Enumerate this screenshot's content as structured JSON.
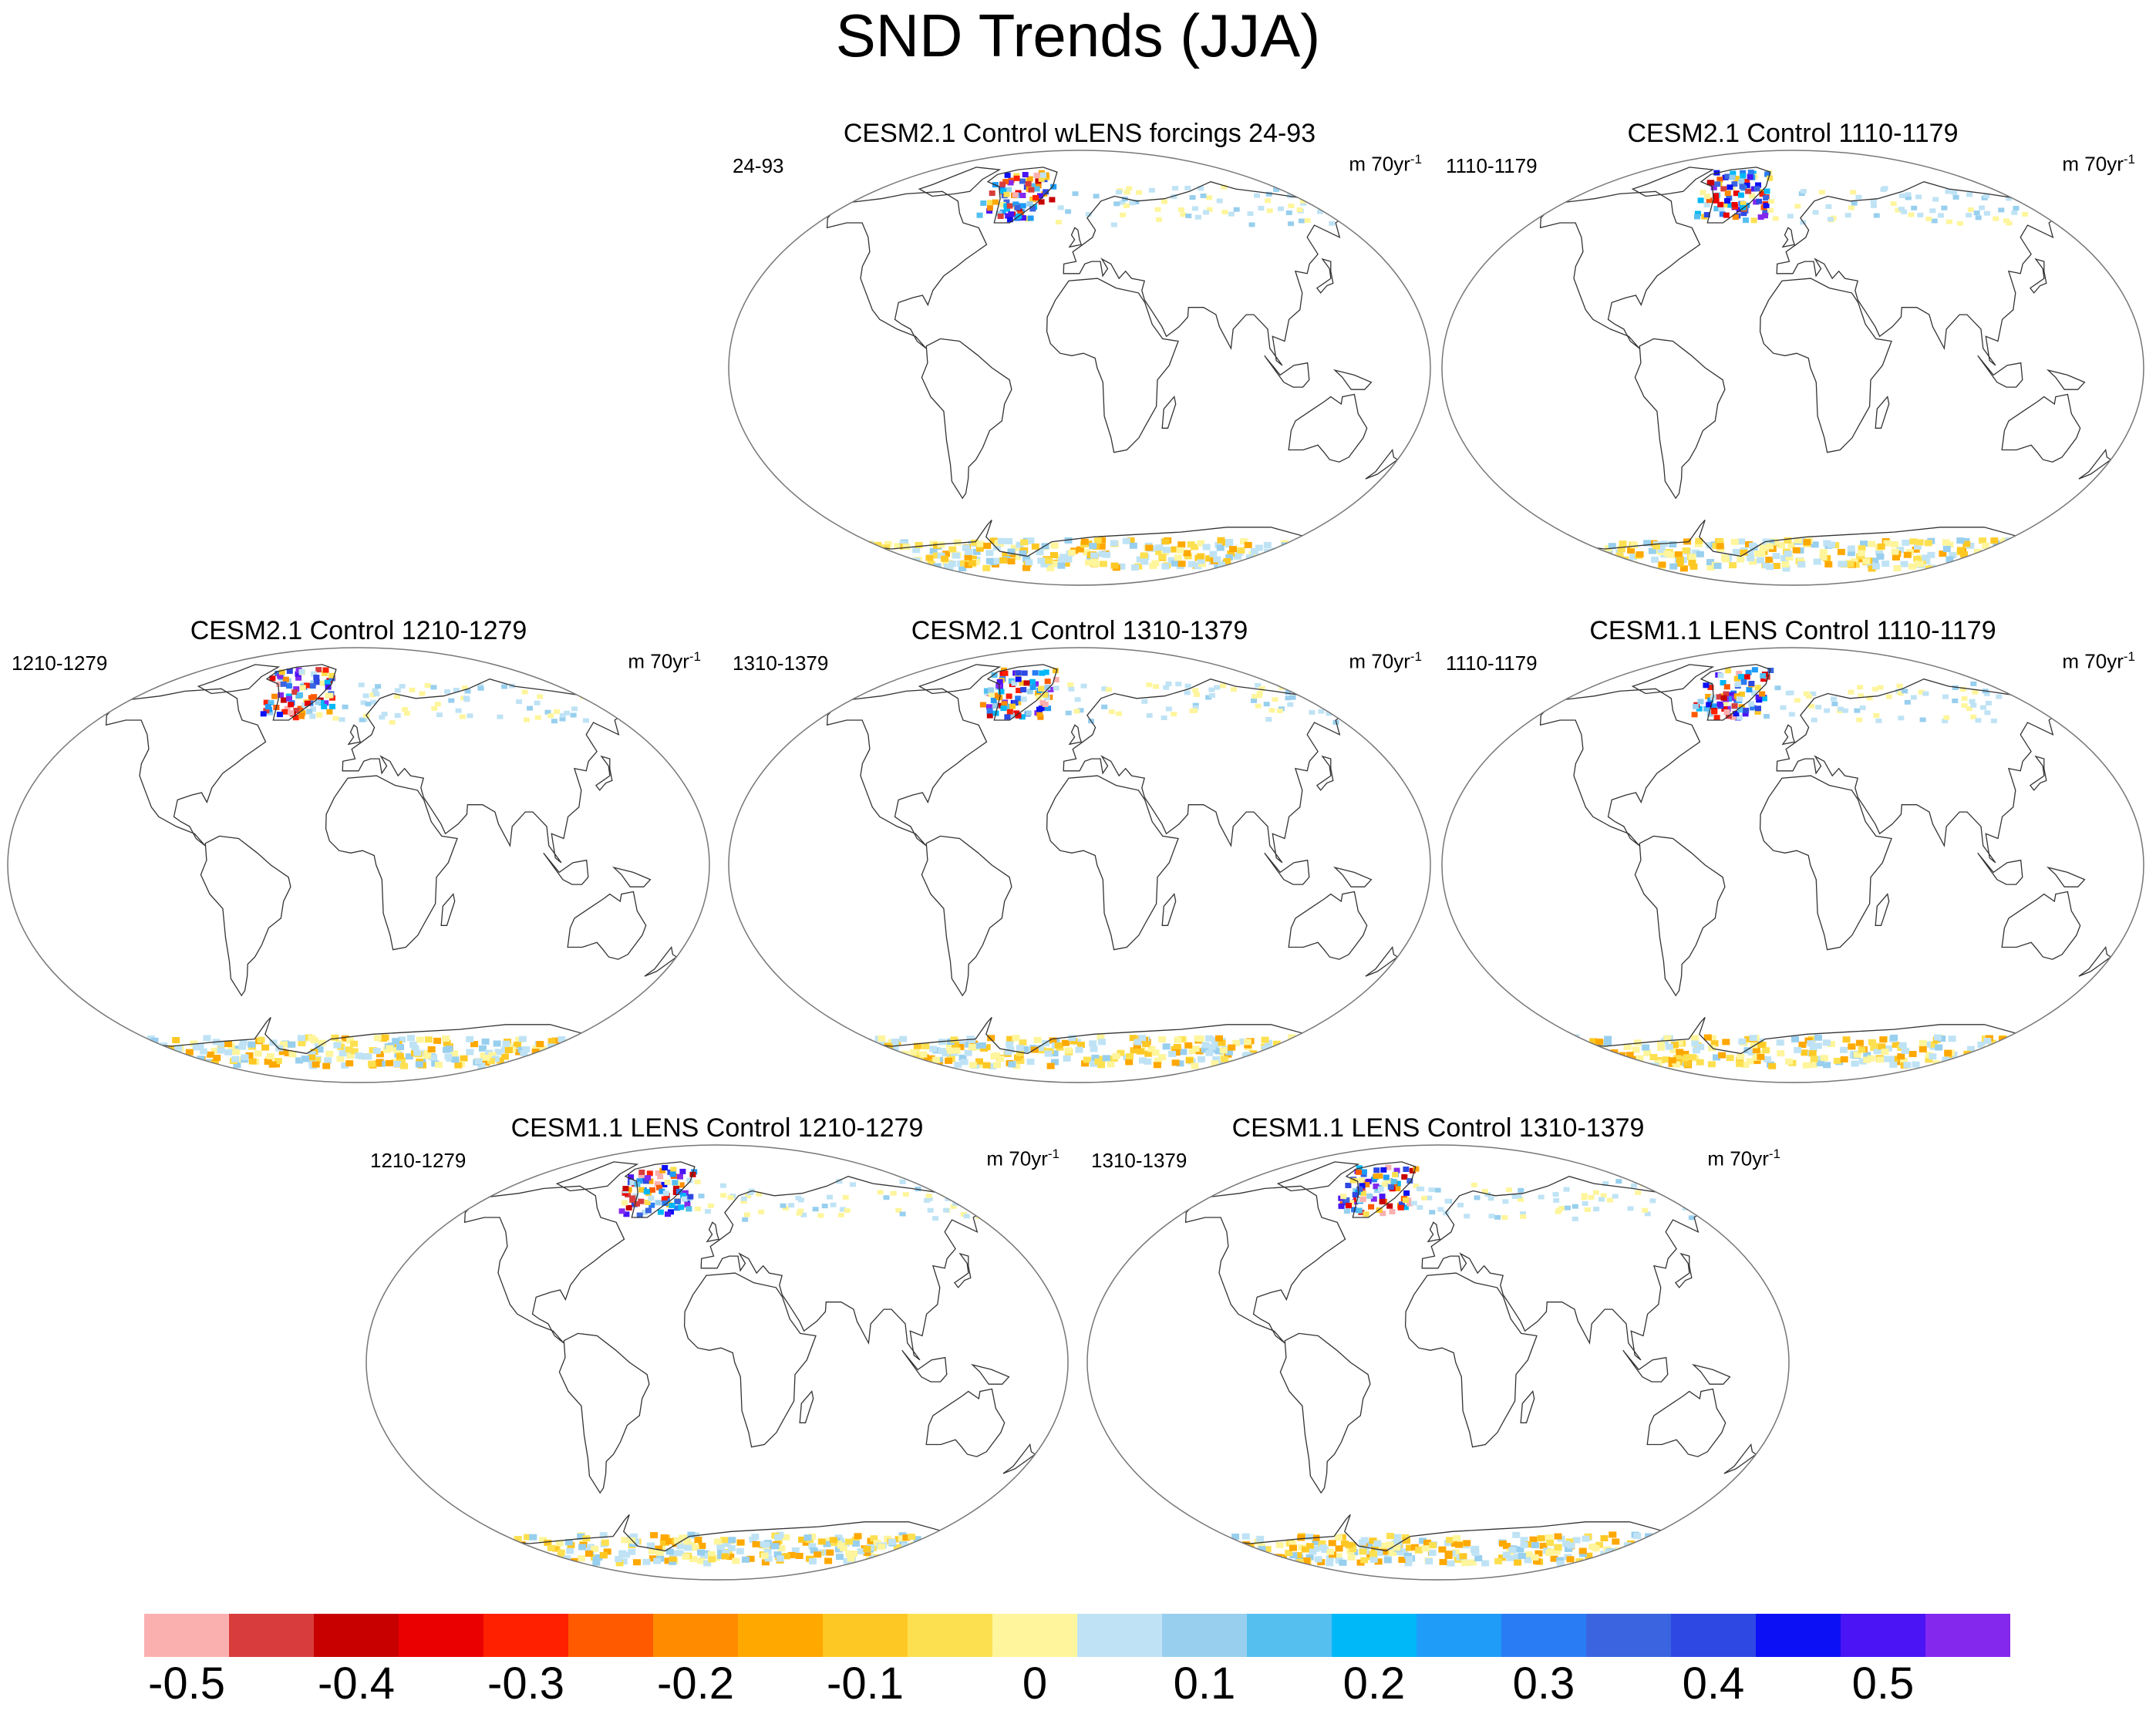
{
  "figure": {
    "title": "SND Trends (JJA)"
  },
  "panels": [
    {
      "title": "CESM2.1 Control wLENS forcings 24-93",
      "period": "24-93",
      "units": "m 70yr",
      "units_exp": "-1"
    },
    {
      "title": "CESM2.1 Control 1110-1179",
      "period": "1110-1179",
      "units": "m 70yr",
      "units_exp": "-1"
    },
    {
      "title": "CESM2.1 Control 1210-1279",
      "period": "1210-1279",
      "units": "m 70yr",
      "units_exp": "-1"
    },
    {
      "title": "CESM2.1 Control 1310-1379",
      "period": "1310-1379",
      "units": "m 70yr",
      "units_exp": "-1"
    },
    {
      "title": "CESM1.1 LENS Control 1110-1179",
      "period": "1110-1179",
      "units": "m 70yr",
      "units_exp": "-1"
    },
    {
      "title": "CESM1.1 LENS Control 1210-1279",
      "period": "1210-1279",
      "units": "m 70yr",
      "units_exp": "-1"
    },
    {
      "title": "CESM1.1 LENS Control 1310-1379",
      "period": "1310-1379",
      "units": "m 70yr",
      "units_exp": "-1"
    }
  ],
  "colorbar": {
    "labels": [
      "-0.5",
      "-0.4",
      "-0.3",
      "-0.2",
      "-0.1",
      "0",
      "0.1",
      "0.2",
      "0.3",
      "0.4",
      "0.5"
    ],
    "colors": [
      "#fbb0b0",
      "#d93c3c",
      "#c80000",
      "#ea0000",
      "#ff2000",
      "#ff5a00",
      "#ff8c00",
      "#ffa800",
      "#fec824",
      "#fde050",
      "#fef59c",
      "#bfe3f5",
      "#98cfee",
      "#55bff0",
      "#00b8f8",
      "#1f9cf8",
      "#2a7cf4",
      "#3a64e0",
      "#2e48e4",
      "#0c10f4",
      "#4a14f4",
      "#8428ee"
    ]
  }
}
